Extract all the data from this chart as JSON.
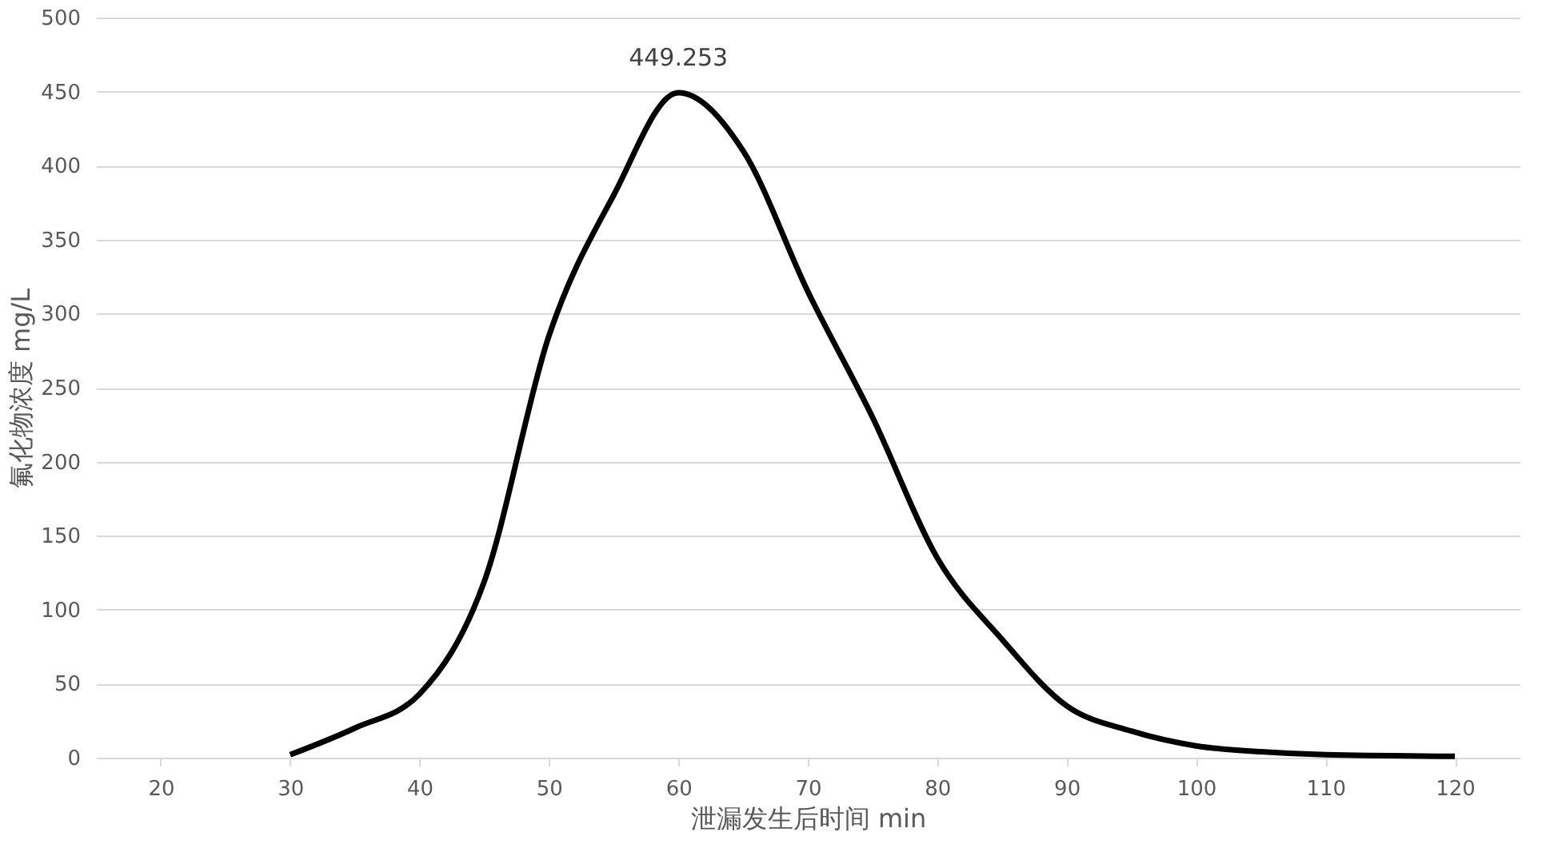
{
  "chart_data": {
    "type": "line",
    "xlabel": "泄漏发生后时间 min",
    "ylabel": "氟化物浓度 mg/L",
    "x": [
      30,
      35,
      40,
      45,
      50,
      55,
      60,
      65,
      70,
      75,
      80,
      85,
      90,
      95,
      100,
      105,
      110,
      120
    ],
    "series": [
      {
        "color": "#000000",
        "values": [
          2,
          20,
          43,
          119,
          285,
          380,
          449.253,
          410,
          315,
          230,
          135,
          80,
          35,
          18,
          8,
          4,
          2,
          1
        ]
      }
    ],
    "xlim": [
      15,
      125
    ],
    "xticks": [
      20,
      30,
      40,
      50,
      60,
      70,
      80,
      90,
      100,
      110,
      120
    ],
    "ylim": [
      0,
      500
    ],
    "yticks": [
      0,
      50,
      100,
      150,
      200,
      250,
      300,
      350,
      400,
      450,
      500
    ],
    "grid": "y",
    "marker": "none",
    "line_style": "solid",
    "annotations": [
      {
        "text": "449.253",
        "x": 60,
        "y": 449.253
      }
    ]
  }
}
